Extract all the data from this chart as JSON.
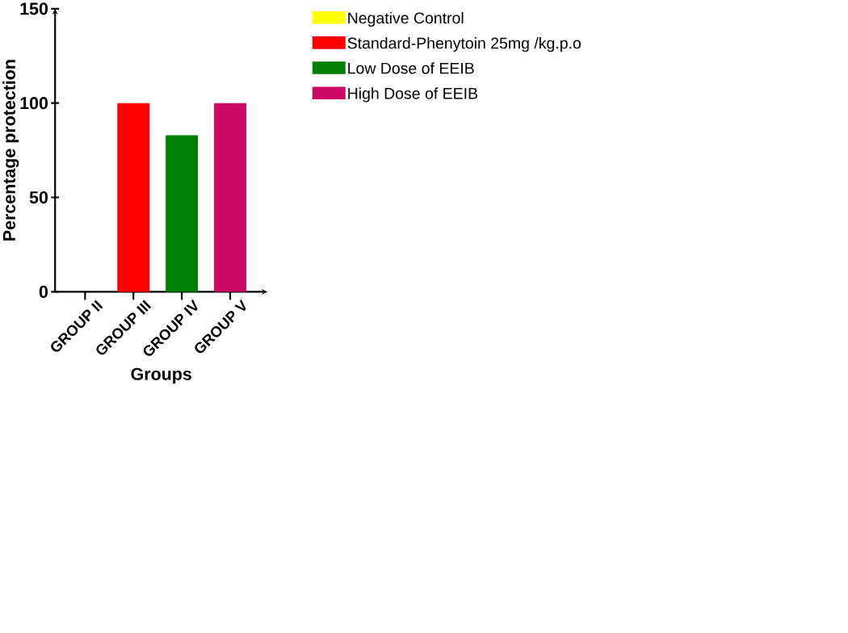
{
  "chart_data": {
    "type": "bar",
    "xlabel": "Groups",
    "ylabel": "Percentage protection",
    "categories": [
      "GROUP II",
      "GROUP III",
      "GROUP IV",
      "GROUP V"
    ],
    "series": [
      {
        "name": "Negative Control",
        "color": "#ffff00",
        "values": [
          0,
          null,
          null,
          null
        ]
      },
      {
        "name": "Standard-Phenytoin 25mg /kg.p.o",
        "color": "#ff0000",
        "values": [
          null,
          100,
          null,
          null
        ]
      },
      {
        "name": "Low Dose of EEIB",
        "color": "#008000",
        "values": [
          null,
          null,
          83,
          null
        ]
      },
      {
        "name": "High Dose of EEIB",
        "color": "#cc0a66",
        "values": [
          null,
          null,
          null,
          100
        ]
      }
    ],
    "ylim": [
      0,
      150
    ],
    "yticks": [
      0,
      50,
      100,
      150
    ],
    "legend": "right",
    "grid": false
  }
}
